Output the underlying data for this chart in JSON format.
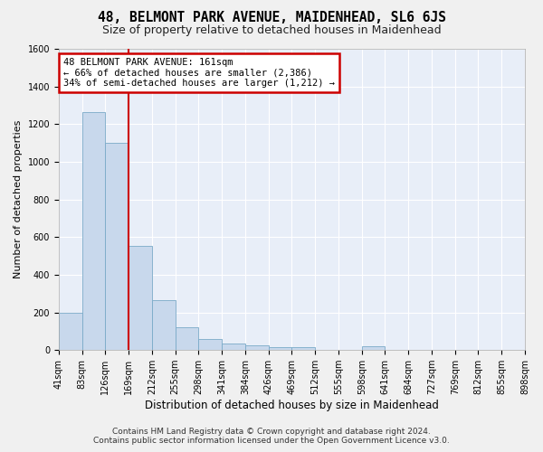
{
  "title": "48, BELMONT PARK AVENUE, MAIDENHEAD, SL6 6JS",
  "subtitle": "Size of property relative to detached houses in Maidenhead",
  "xlabel": "Distribution of detached houses by size in Maidenhead",
  "ylabel": "Number of detached properties",
  "bar_values": [
    200,
    1265,
    1100,
    555,
    265,
    120,
    60,
    35,
    25,
    15,
    15,
    0,
    0,
    20,
    0,
    0,
    0,
    0,
    0,
    0
  ],
  "bar_labels": [
    "41sqm",
    "83sqm",
    "126sqm",
    "169sqm",
    "212sqm",
    "255sqm",
    "298sqm",
    "341sqm",
    "384sqm",
    "426sqm",
    "469sqm",
    "512sqm",
    "555sqm",
    "598sqm",
    "641sqm",
    "684sqm",
    "727sqm",
    "769sqm",
    "812sqm",
    "855sqm",
    "898sqm"
  ],
  "bar_color": "#c8d8ec",
  "bar_edge_color": "#7aaac8",
  "bg_color": "#e8eef8",
  "plot_bg": "#e8eef8",
  "fig_bg": "#f0f0f0",
  "grid_color": "#ffffff",
  "annotation_text1": "48 BELMONT PARK AVENUE: 161sqm",
  "annotation_text2": "← 66% of detached houses are smaller (2,386)",
  "annotation_text3": "34% of semi-detached houses are larger (1,212) →",
  "annotation_box_color": "#ffffff",
  "annotation_border_color": "#cc0000",
  "vline_color": "#cc0000",
  "footer_text": "Contains HM Land Registry data © Crown copyright and database right 2024.\nContains public sector information licensed under the Open Government Licence v3.0.",
  "ylim": [
    0,
    1600
  ],
  "title_fontsize": 10.5,
  "subtitle_fontsize": 9,
  "xlabel_fontsize": 8.5,
  "ylabel_fontsize": 8,
  "tick_fontsize": 7,
  "footer_fontsize": 6.5,
  "annot_fontsize": 7.5
}
